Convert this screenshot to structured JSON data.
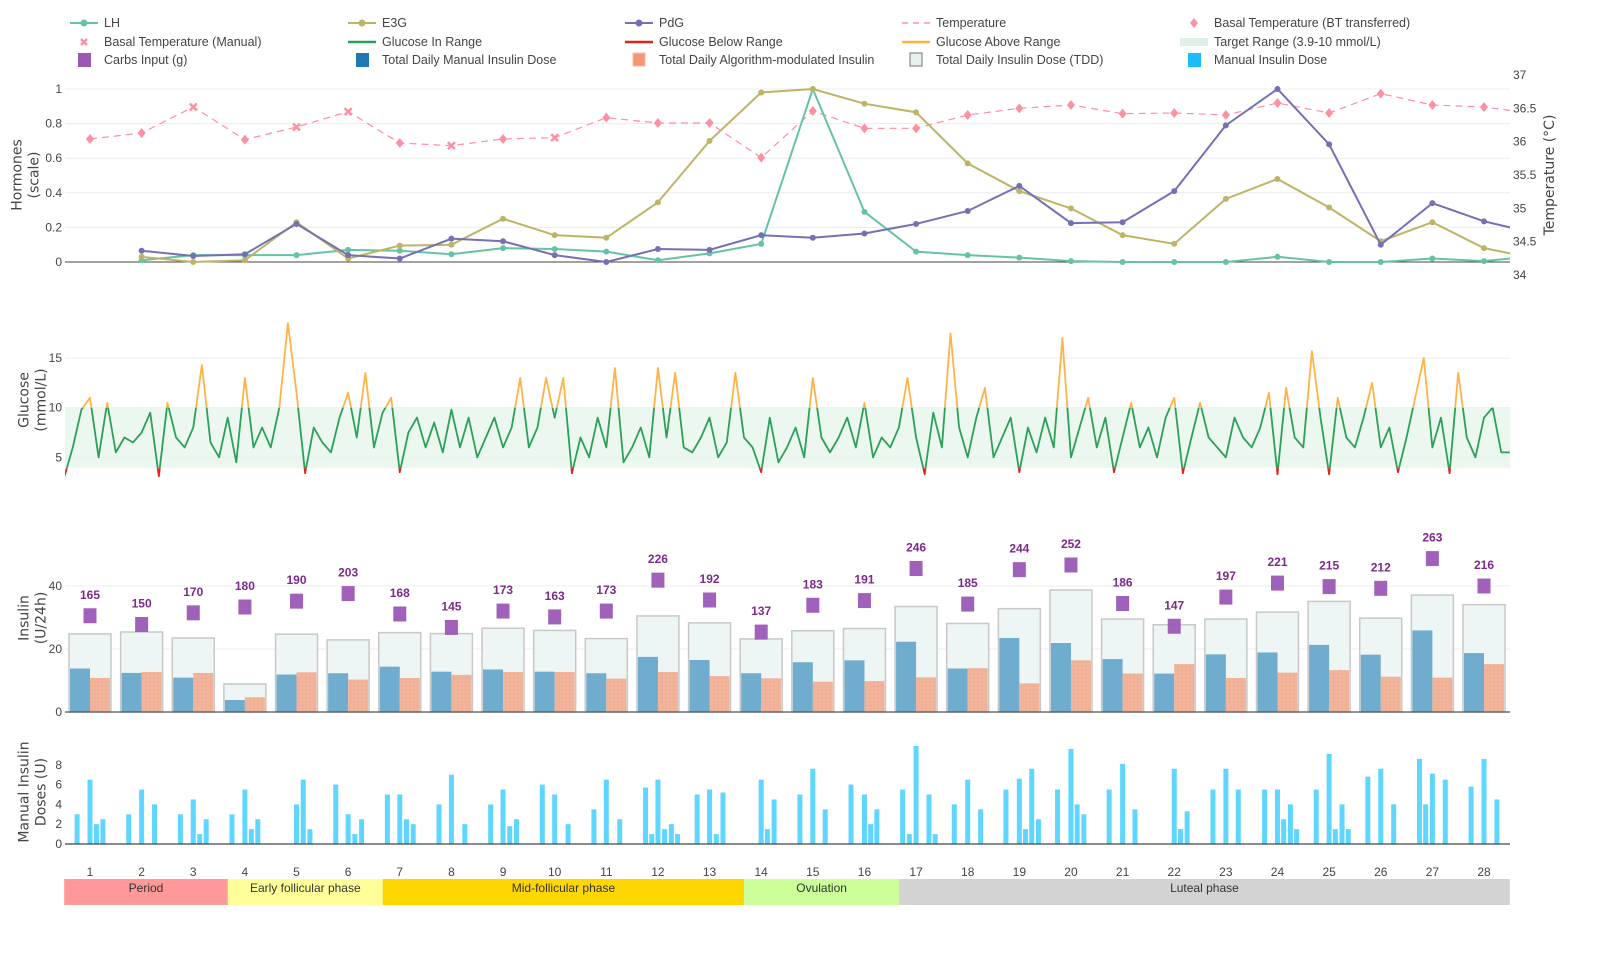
{
  "legend": [
    {
      "label": "LH",
      "color": "#66c2a5",
      "symbol": "line-marker"
    },
    {
      "label": "E3G",
      "color": "#bdb466",
      "symbol": "line-marker"
    },
    {
      "label": "PdG",
      "color": "#7570b3",
      "symbol": "line-marker"
    },
    {
      "label": "Temperature",
      "color": "#ff8fa3",
      "symbol": "dash"
    },
    {
      "label": "Basal Temperature (BT transferred)",
      "color": "#ff8fa3",
      "symbol": "diamond"
    },
    {
      "label": "Basal Temperature (Manual)",
      "color": "#ff8fa3",
      "symbol": "x"
    },
    {
      "label": "Glucose In Range",
      "color": "#2ca05a",
      "symbol": "line"
    },
    {
      "label": "Glucose Below Range",
      "color": "#e0231c",
      "symbol": "line"
    },
    {
      "label": "Glucose Above Range",
      "color": "#ffb347",
      "symbol": "line"
    },
    {
      "label": "Target Range (3.9-10 mmol/L)",
      "color": "#dff1e6",
      "symbol": "area"
    },
    {
      "label": "Carbs Input (g)",
      "color": "#9b59b6",
      "symbol": "square"
    },
    {
      "label": "Total Daily Manual Insulin Dose",
      "color": "#1f77b4",
      "symbol": "square"
    },
    {
      "label": "Total Daily Algorithm-modulated Insulin",
      "color": "#f4875a",
      "symbol": "square-dotted"
    },
    {
      "label": "Total Daily Insulin Dose (TDD)",
      "color": "#e8f0f0",
      "symbol": "square-outline"
    },
    {
      "label": "Manual Insulin Dose",
      "color": "#1cbcff",
      "symbol": "square"
    }
  ],
  "x_axis": {
    "range": [
      0.5,
      28.5
    ],
    "ticks": [
      "1",
      "2",
      "3",
      "4",
      "5",
      "6",
      "7",
      "8",
      "9",
      "10",
      "11",
      "12",
      "13",
      "14",
      "15",
      "16",
      "17",
      "18",
      "19",
      "20",
      "21",
      "22",
      "23",
      "24",
      "25",
      "26",
      "27",
      "28"
    ]
  },
  "phases": [
    {
      "label": "Period",
      "start_day": 0.5,
      "end_day": 3.67,
      "color": "#ff9999"
    },
    {
      "label": "Early follicular phase",
      "start_day": 3.67,
      "end_day": 6.67,
      "color": "#ffff99"
    },
    {
      "label": "Mid-follicular phase",
      "start_day": 6.67,
      "end_day": 13.67,
      "color": "#ffd700"
    },
    {
      "label": "Ovulation",
      "start_day": 13.67,
      "end_day": 16.67,
      "color": "#ccff99"
    },
    {
      "label": "Luteal phase",
      "start_day": 16.67,
      "end_day": 28.5,
      "color": "#d3d3d3"
    }
  ],
  "chart_data": [
    {
      "type": "line",
      "ylabel": [
        "Hormones",
        "(scale)"
      ],
      "ylim": [
        0,
        1
      ],
      "yticks": [
        "0",
        "0.2",
        "0.4",
        "0.6",
        "0.8",
        "1"
      ],
      "y2label": "Temperature (°C)",
      "y2lim": [
        34,
        37
      ],
      "y2ticks": [
        "34",
        "34.5",
        "35",
        "35.5",
        "36",
        "36.5",
        "37"
      ],
      "grid": true,
      "x": [
        2,
        3,
        4,
        5,
        6,
        7,
        8,
        9,
        10,
        11,
        12,
        13,
        14,
        15,
        16,
        17,
        18,
        19,
        20,
        21,
        22,
        23,
        24,
        25,
        26,
        27,
        28,
        29
      ],
      "series": [
        {
          "name": "LH",
          "color": "#66c2a5",
          "values": [
            0.01,
            0.04,
            0.04,
            0.04,
            0.07,
            0.065,
            0.045,
            0.08,
            0.075,
            0.06,
            0.01,
            0.05,
            0.105,
            1.0,
            0.29,
            0.06,
            0.04,
            0.025,
            0.005,
            0.0,
            0.0,
            0.0,
            0.03,
            0.0,
            0.0,
            0.02,
            0.005,
            0.035
          ]
        },
        {
          "name": "E3G",
          "color": "#bdb466",
          "values": [
            0.03,
            0.0,
            0.01,
            0.23,
            0.02,
            0.095,
            0.1,
            0.25,
            0.155,
            0.14,
            0.345,
            0.7,
            0.98,
            1.0,
            0.915,
            0.865,
            0.57,
            0.41,
            0.31,
            0.155,
            0.105,
            0.365,
            0.48,
            0.315,
            0.12,
            0.23,
            0.08,
            0.02
          ]
        },
        {
          "name": "PdG",
          "color": "#7570b3",
          "values": [
            0.065,
            0.035,
            0.045,
            0.22,
            0.04,
            0.02,
            0.135,
            0.12,
            0.04,
            0.0,
            0.075,
            0.07,
            0.155,
            0.14,
            0.165,
            0.22,
            0.295,
            0.44,
            0.225,
            0.23,
            0.41,
            0.79,
            1.0,
            0.68,
            0.1,
            0.34,
            0.235,
            0.165
          ]
        }
      ],
      "temperature": {
        "name": "Temperature",
        "color": "#ff8fa3",
        "x": [
          1,
          2,
          3,
          4,
          5,
          6,
          7,
          8,
          9,
          10,
          11,
          12,
          13,
          14,
          15,
          16,
          17,
          18,
          19,
          20,
          21,
          22,
          23,
          24,
          25,
          26,
          27,
          28,
          29
        ],
        "values": [
          36.04,
          36.13,
          36.52,
          36.03,
          36.22,
          36.45,
          35.98,
          35.94,
          36.04,
          36.06,
          36.36,
          36.28,
          36.28,
          35.76,
          36.46,
          36.2,
          36.2,
          36.4,
          36.5,
          36.55,
          36.42,
          36.43,
          36.4,
          36.58,
          36.43,
          36.72,
          36.55,
          36.52,
          36.42
        ],
        "source": [
          "BT transferred",
          "BT transferred",
          "Manual",
          "BT transferred",
          "Manual",
          "Manual",
          "BT transferred",
          "Manual",
          "BT transferred",
          "Manual",
          "BT transferred",
          "BT transferred",
          "BT transferred",
          "BT transferred",
          "BT transferred",
          "BT transferred",
          "BT transferred",
          "BT transferred",
          "BT transferred",
          "BT transferred",
          "BT transferred",
          "BT transferred",
          "BT transferred",
          "BT transferred",
          "BT transferred",
          "BT transferred",
          "BT transferred",
          "BT transferred",
          "BT transferred"
        ]
      }
    },
    {
      "type": "line",
      "ylabel": [
        "Glucose",
        "(mmol/L)"
      ],
      "yticks": [
        "5",
        "10",
        "15"
      ],
      "target_range": [
        3.9,
        10
      ],
      "colors": {
        "in_range": "#2ca05a",
        "below": "#e0231c",
        "above": "#ffb347",
        "target_fill": "#e3f3e8"
      },
      "start_day": 0.5,
      "step_hours": 4,
      "values": [
        3.0,
        6,
        9.8,
        11,
        5,
        10.5,
        5.5,
        7,
        6.5,
        7.5,
        9.5,
        3.1,
        10.5,
        7,
        6,
        8,
        14.3,
        6.5,
        5,
        9,
        4.5,
        13,
        6,
        8,
        6,
        10,
        18.5,
        11.5,
        3.4,
        8,
        6.5,
        5.5,
        9,
        11.5,
        7,
        13.5,
        6,
        9.5,
        11,
        3.5,
        7.5,
        9,
        6,
        8.5,
        5.5,
        9.8,
        6,
        9,
        5,
        7,
        9,
        6,
        8,
        13,
        6,
        8,
        13,
        9,
        13,
        3.4,
        7,
        5,
        9,
        6,
        14,
        4.5,
        6,
        8,
        5,
        14,
        7,
        13.5,
        6,
        5.5,
        7,
        9,
        5,
        6.5,
        13.5,
        7,
        6,
        3.5,
        9,
        4.5,
        6,
        8,
        5,
        13,
        7,
        5.5,
        7,
        9,
        6,
        10.5,
        5,
        7,
        6,
        8,
        13,
        7,
        3.3,
        9.5,
        6,
        17.5,
        8,
        5,
        9,
        12,
        5,
        7,
        9,
        3.5,
        8,
        5.5,
        9,
        6,
        17,
        5,
        8,
        11,
        6,
        9,
        3.5,
        7,
        10.5,
        6,
        8,
        5,
        9,
        11,
        3.4,
        7,
        10.5,
        7,
        6,
        5,
        9,
        7,
        6,
        8,
        11.5,
        3.3,
        12,
        7,
        6,
        15.7,
        9,
        3.3,
        11,
        7,
        6,
        9,
        12.5,
        6,
        8,
        3.5,
        7,
        11,
        15,
        6,
        9,
        3.4,
        13.5,
        7,
        5,
        9,
        10,
        5.5,
        5.5
      ]
    },
    {
      "type": "bar",
      "ylabel": [
        "Insulin",
        "(U/24h)"
      ],
      "yticks": [
        "0",
        "20",
        "40"
      ],
      "categories": [
        "1",
        "2",
        "3",
        "4",
        "5",
        "6",
        "7",
        "8",
        "9",
        "10",
        "11",
        "12",
        "13",
        "14",
        "15",
        "16",
        "17",
        "18",
        "19",
        "20",
        "21",
        "22",
        "23",
        "24",
        "25",
        "26",
        "27",
        "28"
      ],
      "series": [
        {
          "name": "Total Daily Insulin Dose (TDD)",
          "color": "#eef5f5",
          "values": [
            24.8,
            25.4,
            23.5,
            8.9,
            24.7,
            22.9,
            25.2,
            24.9,
            26.6,
            25.9,
            23.3,
            30.5,
            28.3,
            23.2,
            25.8,
            26.5,
            33.5,
            28.1,
            32.8,
            38.7,
            29.5,
            27.7,
            29.5,
            31.7,
            35.1,
            29.8,
            37.1,
            34.1
          ]
        },
        {
          "name": "Total Daily Manual Insulin Dose",
          "color": "#6faccd",
          "values": [
            13.8,
            12.4,
            10.9,
            3.8,
            11.9,
            12.3,
            14.4,
            12.8,
            13.5,
            12.8,
            12.3,
            17.5,
            16.5,
            12.3,
            15.8,
            16.4,
            22.3,
            13.8,
            23.5,
            21.9,
            16.8,
            12.2,
            18.3,
            18.9,
            21.3,
            18.2,
            25.9,
            18.7
          ]
        },
        {
          "name": "Total Daily Algorithm-modulated Insulin",
          "color": "#f2b39b",
          "values": [
            10.8,
            12.7,
            12.4,
            4.7,
            12.6,
            10.3,
            10.8,
            11.8,
            12.7,
            12.7,
            10.6,
            12.7,
            11.4,
            10.7,
            9.6,
            9.8,
            11.0,
            13.9,
            9.1,
            16.4,
            12.2,
            15.2,
            10.8,
            12.5,
            13.3,
            11.2,
            10.9,
            15.2
          ]
        }
      ],
      "carbs": {
        "name": "Carbs Input (g)",
        "color": "#9b59b6",
        "label_color": "#7b2a8a",
        "values": [
          165,
          150,
          170,
          180,
          190,
          203,
          168,
          145,
          173,
          163,
          173,
          226,
          192,
          137,
          183,
          191,
          246,
          185,
          244,
          252,
          186,
          147,
          197,
          221,
          215,
          212,
          263,
          216
        ]
      }
    },
    {
      "type": "bar",
      "ylabel": [
        "Manual Insulin",
        "Doses (U)"
      ],
      "yticks": [
        "0",
        "2",
        "4",
        "6",
        "8"
      ],
      "color": "#5fd6ff",
      "doses": [
        [
          0.75,
          3
        ],
        [
          1.0,
          6.5
        ],
        [
          1.125,
          2
        ],
        [
          1.25,
          2.5
        ],
        [
          1.75,
          3
        ],
        [
          2.0,
          5.5
        ],
        [
          2.25,
          4
        ],
        [
          2.75,
          3
        ],
        [
          3.0,
          4.5
        ],
        [
          3.125,
          1
        ],
        [
          3.25,
          2.5
        ],
        [
          3.75,
          3
        ],
        [
          4.0,
          5.5
        ],
        [
          4.125,
          1.5
        ],
        [
          4.25,
          2.5
        ],
        [
          5.0,
          4
        ],
        [
          5.13,
          6.5
        ],
        [
          5.26,
          1.5
        ],
        [
          5.76,
          6
        ],
        [
          6.0,
          3
        ],
        [
          6.13,
          1
        ],
        [
          6.26,
          2.5
        ],
        [
          6.76,
          5
        ],
        [
          7.0,
          5
        ],
        [
          7.13,
          2.5
        ],
        [
          7.26,
          2
        ],
        [
          7.76,
          4
        ],
        [
          8.0,
          7
        ],
        [
          8.26,
          2
        ],
        [
          8.76,
          4
        ],
        [
          9.0,
          5.5
        ],
        [
          9.13,
          1.8
        ],
        [
          9.26,
          2.5
        ],
        [
          9.76,
          6
        ],
        [
          10.0,
          5
        ],
        [
          10.26,
          2
        ],
        [
          10.76,
          3.5
        ],
        [
          11.0,
          6.5
        ],
        [
          11.26,
          2.5
        ],
        [
          11.76,
          5.7
        ],
        [
          11.88,
          1
        ],
        [
          12.0,
          6.5
        ],
        [
          12.13,
          1.5
        ],
        [
          12.26,
          2
        ],
        [
          12.38,
          1
        ],
        [
          12.76,
          5
        ],
        [
          13.0,
          5.5
        ],
        [
          13.13,
          1
        ],
        [
          13.26,
          5.2
        ],
        [
          14.0,
          6.5
        ],
        [
          14.12,
          1.5
        ],
        [
          14.25,
          4.5
        ],
        [
          14.75,
          5.0
        ],
        [
          15.0,
          7.6
        ],
        [
          15.24,
          3.5
        ],
        [
          15.74,
          6.0
        ],
        [
          16.0,
          5.0
        ],
        [
          16.12,
          2.0
        ],
        [
          16.24,
          3.5
        ],
        [
          16.74,
          5.5
        ],
        [
          16.87,
          1.0
        ],
        [
          17.0,
          9.9
        ],
        [
          17.25,
          5.0
        ],
        [
          17.37,
          1.0
        ],
        [
          17.74,
          4.0
        ],
        [
          18.0,
          6.5
        ],
        [
          18.25,
          3.5
        ],
        [
          18.74,
          5.5
        ],
        [
          19.0,
          6.6
        ],
        [
          19.12,
          1.5
        ],
        [
          19.24,
          7.6
        ],
        [
          19.37,
          2.5
        ],
        [
          19.74,
          5.5
        ],
        [
          20.0,
          9.6
        ],
        [
          20.12,
          4.0
        ],
        [
          20.25,
          3.0
        ],
        [
          20.74,
          5.5
        ],
        [
          21.0,
          8.1
        ],
        [
          21.24,
          3.5
        ],
        [
          22.0,
          7.6
        ],
        [
          22.12,
          1.5
        ],
        [
          22.25,
          3.3
        ],
        [
          22.75,
          5.5
        ],
        [
          23.0,
          7.6
        ],
        [
          23.24,
          5.5
        ],
        [
          23.75,
          5.5
        ],
        [
          24.0,
          5.5
        ],
        [
          24.12,
          2.5
        ],
        [
          24.25,
          4.0
        ],
        [
          24.37,
          1.5
        ],
        [
          24.75,
          5.5
        ],
        [
          25.0,
          9.1
        ],
        [
          25.12,
          1.5
        ],
        [
          25.25,
          4.0
        ],
        [
          25.37,
          1.5
        ],
        [
          25.75,
          6.8
        ],
        [
          26.0,
          7.6
        ],
        [
          26.25,
          4.0
        ],
        [
          26.75,
          8.6
        ],
        [
          26.87,
          4.0
        ],
        [
          27.0,
          7.1
        ],
        [
          27.25,
          6.5
        ],
        [
          27.75,
          5.8
        ],
        [
          28.0,
          8.6
        ],
        [
          28.25,
          4.5
        ]
      ]
    }
  ]
}
